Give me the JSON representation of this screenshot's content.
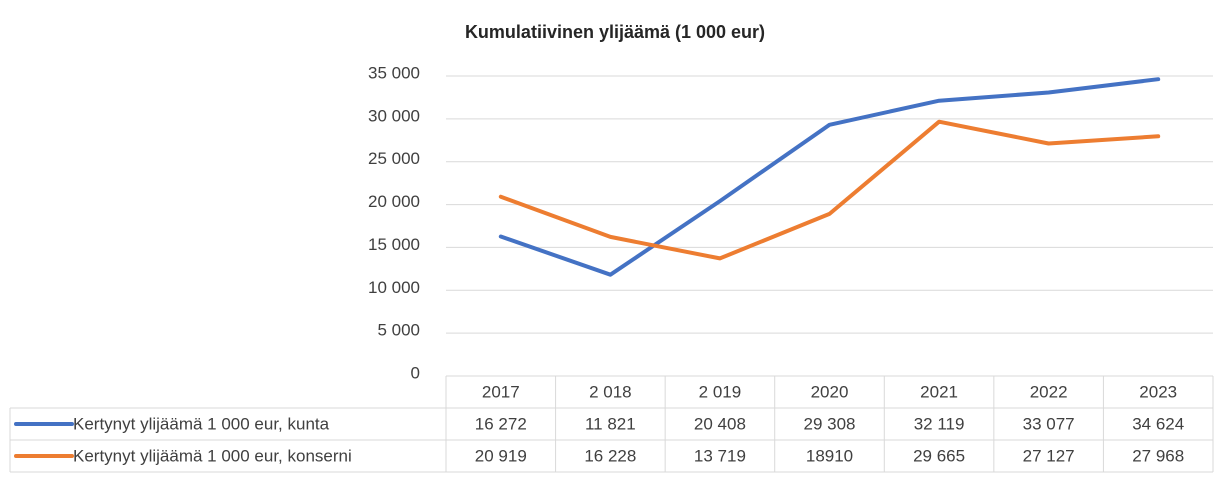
{
  "chart_data": {
    "type": "line",
    "title": "Kumulatiivinen ylijäämä (1 000 eur)",
    "categories": [
      "2017",
      "2 018",
      "2 019",
      "2020",
      "2021",
      "2022",
      "2023"
    ],
    "series": [
      {
        "name": "Kertynyt ylijäämä 1 000 eur, kunta",
        "color": "#4472c4",
        "values": [
          16272,
          11821,
          20408,
          29308,
          32119,
          33077,
          34624
        ],
        "value_labels": [
          "16 272",
          "11 821",
          "20 408",
          "29 308",
          "32 119",
          "33 077",
          "34 624"
        ]
      },
      {
        "name": "Kertynyt ylijäämä 1 000 eur, konserni",
        "color": "#ed7d31",
        "values": [
          20919,
          16228,
          13719,
          18910,
          29665,
          27127,
          27968
        ],
        "value_labels": [
          "20 919",
          "16 228",
          "13 719",
          "18910",
          "29 665",
          "27 127",
          "27 968"
        ]
      }
    ],
    "ylim": [
      0,
      35000
    ],
    "yticks": [
      0,
      {
        "value": 5000,
        "label": "5 000"
      },
      {
        "value": 10000,
        "label": "10 000"
      },
      {
        "value": 15000,
        "label": "15 000"
      },
      {
        "value": 20000,
        "label": "20 000"
      },
      {
        "value": 25000,
        "label": "25 000"
      },
      {
        "value": 30000,
        "label": "30 000"
      },
      {
        "value": 35000,
        "label": "35 000"
      }
    ],
    "grid": true
  }
}
